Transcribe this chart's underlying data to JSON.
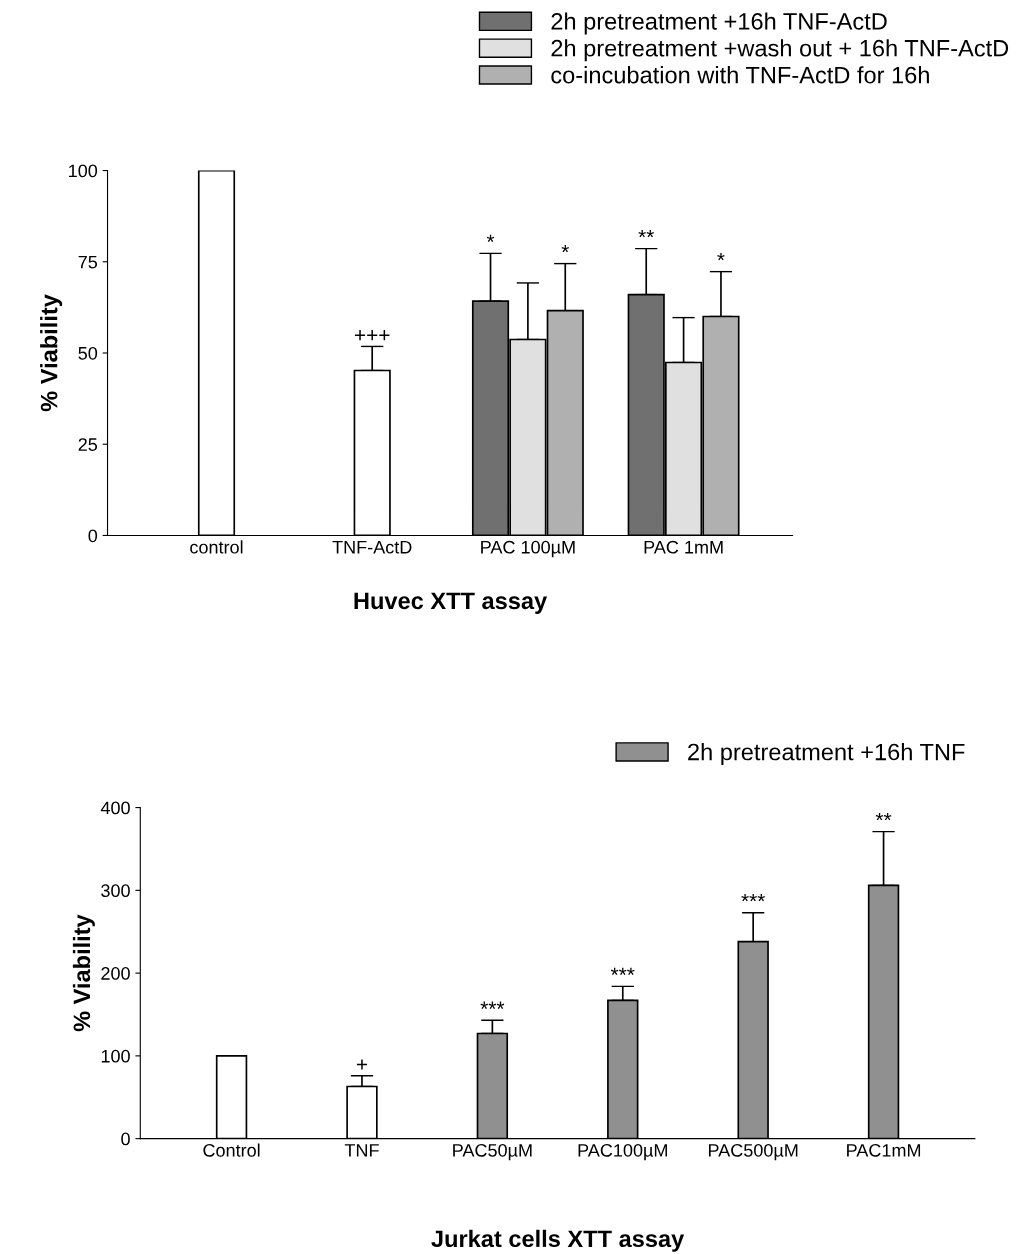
{
  "chart_data": [
    {
      "type": "bar",
      "xlabel": "Huvec XTT assay",
      "ylabel": "% Viability",
      "categories": [
        "control",
        "TNF-ActD",
        "PAC 100µM",
        "PAC 1mM"
      ],
      "ylim": [
        0,
        100
      ],
      "yticks": [
        0,
        25,
        50,
        75,
        100
      ],
      "grid": false,
      "legend": "top right",
      "series": [
        {
          "color": "#ffffff",
          "values": [
            100,
            45.2,
            null,
            null
          ],
          "errors": [
            null,
            [
              45.2,
              51.8
            ],
            null,
            null
          ],
          "value_labels": [
            null,
            "+++",
            null,
            null
          ]
        },
        {
          "name": "2h pretreatment +16h TNF-ActD",
          "color": "#707070",
          "values": [
            null,
            null,
            64.2,
            66
          ],
          "errors": [
            null,
            null,
            [
              64.2,
              77.3
            ],
            [
              66,
              78.6
            ]
          ],
          "value_labels": [
            null,
            null,
            "*",
            "**"
          ]
        },
        {
          "name": "2h pretreatment +wash out + 16h TNF-ActD",
          "color": "#e0e0e0",
          "values": [
            null,
            null,
            53.7,
            47.4
          ],
          "errors": [
            null,
            null,
            [
              53.7,
              69.2
            ],
            [
              47.4,
              59.7
            ]
          ],
          "value_labels": [
            null,
            null,
            null,
            null
          ]
        },
        {
          "name": "co-incubation with TNF-ActD for 16h",
          "color": "#b0b0b0",
          "values": [
            null,
            null,
            61.6,
            60
          ],
          "errors": [
            null,
            null,
            [
              61.6,
              74.5
            ],
            [
              60,
              72.3
            ]
          ],
          "value_labels": [
            null,
            null,
            "*",
            "*"
          ]
        }
      ]
    },
    {
      "type": "bar",
      "xlabel": "Jurkat cells XTT assay",
      "ylabel": "% Viability",
      "categories": [
        "Control",
        "TNF",
        "PAC50µM",
        "PAC100µM",
        "PAC500µM",
        "PAC1mM"
      ],
      "ylim": [
        0,
        400
      ],
      "yticks": [
        0,
        100,
        200,
        300,
        400
      ],
      "grid": false,
      "legend": "top right",
      "series": [
        {
          "color": "#ffffff",
          "values": [
            100,
            63,
            null,
            null,
            null,
            null
          ],
          "errors": [
            null,
            [
              63,
              76
            ],
            null,
            null,
            null,
            null
          ],
          "value_labels": [
            null,
            "+",
            null,
            null,
            null,
            null
          ]
        },
        {
          "name": "2h pretreatment +16h TNF",
          "color": "#909090",
          "values": [
            null,
            null,
            127,
            167,
            238,
            306
          ],
          "errors": [
            null,
            null,
            [
              127,
              143
            ],
            [
              167,
              184
            ],
            [
              238,
              273
            ],
            [
              306,
              371
            ]
          ],
          "value_labels": [
            null,
            null,
            "***",
            "***",
            "***",
            "**"
          ]
        }
      ]
    }
  ]
}
